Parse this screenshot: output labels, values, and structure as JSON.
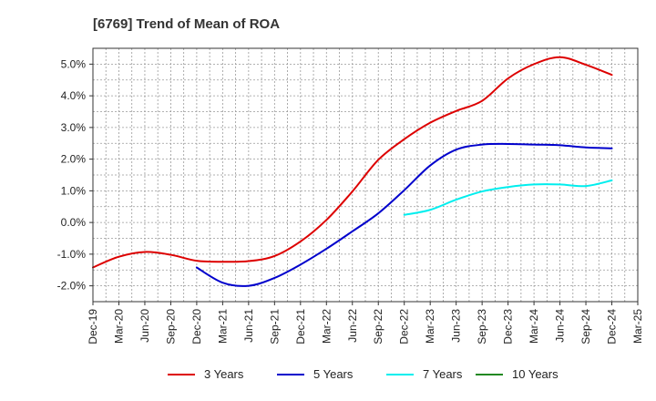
{
  "chart_data": {
    "type": "line",
    "title": "[6769]  Trend of Mean of ROA",
    "xlabel": "",
    "ylabel": "",
    "y_unit": "%",
    "ylim": [
      -2.5,
      5.5
    ],
    "y_ticks": [
      5.0,
      4.0,
      3.0,
      2.0,
      1.0,
      0.0,
      -1.0,
      -2.0
    ],
    "y_tick_labels": [
      "5.0%",
      "4.0%",
      "3.0%",
      "2.0%",
      "1.0%",
      "0.0%",
      "-1.0%",
      "-2.0%"
    ],
    "x_tick_labels": [
      "Dec-19",
      "Mar-20",
      "Jun-20",
      "Sep-20",
      "Dec-20",
      "Mar-21",
      "Jun-21",
      "Sep-21",
      "Dec-21",
      "Mar-22",
      "Jun-22",
      "Sep-22",
      "Dec-22",
      "Mar-23",
      "Jun-23",
      "Sep-23",
      "Dec-23",
      "Mar-24",
      "Jun-24",
      "Sep-24",
      "Dec-24",
      "Mar-25"
    ],
    "grid": true,
    "legend_position": "bottom",
    "series": [
      {
        "name": "3 Years",
        "color": "#dd0000",
        "x": [
          "Dec-19",
          "Mar-20",
          "Jun-20",
          "Sep-20",
          "Dec-20",
          "Mar-21",
          "Jun-21",
          "Sep-21",
          "Dec-21",
          "Mar-22",
          "Jun-22",
          "Sep-22",
          "Dec-22",
          "Mar-23",
          "Jun-23",
          "Sep-23",
          "Dec-23",
          "Mar-24",
          "Jun-24",
          "Sep-24",
          "Dec-24"
        ],
        "values": [
          -1.42,
          -1.08,
          -0.93,
          -1.02,
          -1.21,
          -1.24,
          -1.22,
          -1.06,
          -0.6,
          0.08,
          0.98,
          1.98,
          2.63,
          3.15,
          3.52,
          3.84,
          4.55,
          5.0,
          5.22,
          4.98,
          4.66
        ]
      },
      {
        "name": "5 Years",
        "color": "#0000cc",
        "x": [
          "Dec-20",
          "Mar-21",
          "Jun-21",
          "Sep-21",
          "Dec-21",
          "Mar-22",
          "Jun-22",
          "Sep-22",
          "Dec-22",
          "Mar-23",
          "Jun-23",
          "Sep-23",
          "Dec-23",
          "Mar-24",
          "Jun-24",
          "Sep-24",
          "Dec-24"
        ],
        "values": [
          -1.42,
          -1.9,
          -2.0,
          -1.75,
          -1.33,
          -0.83,
          -0.28,
          0.29,
          1.02,
          1.8,
          2.3,
          2.46,
          2.48,
          2.46,
          2.44,
          2.37,
          2.34
        ]
      },
      {
        "name": "7 Years",
        "color": "#00eeee",
        "x": [
          "Dec-22",
          "Mar-23",
          "Jun-23",
          "Sep-23",
          "Dec-23",
          "Mar-24",
          "Jun-24",
          "Sep-24",
          "Dec-24"
        ],
        "values": [
          0.24,
          0.4,
          0.72,
          0.98,
          1.12,
          1.2,
          1.2,
          1.15,
          1.33
        ]
      },
      {
        "name": "10 Years",
        "color": "#228822",
        "x": [],
        "values": []
      }
    ]
  }
}
